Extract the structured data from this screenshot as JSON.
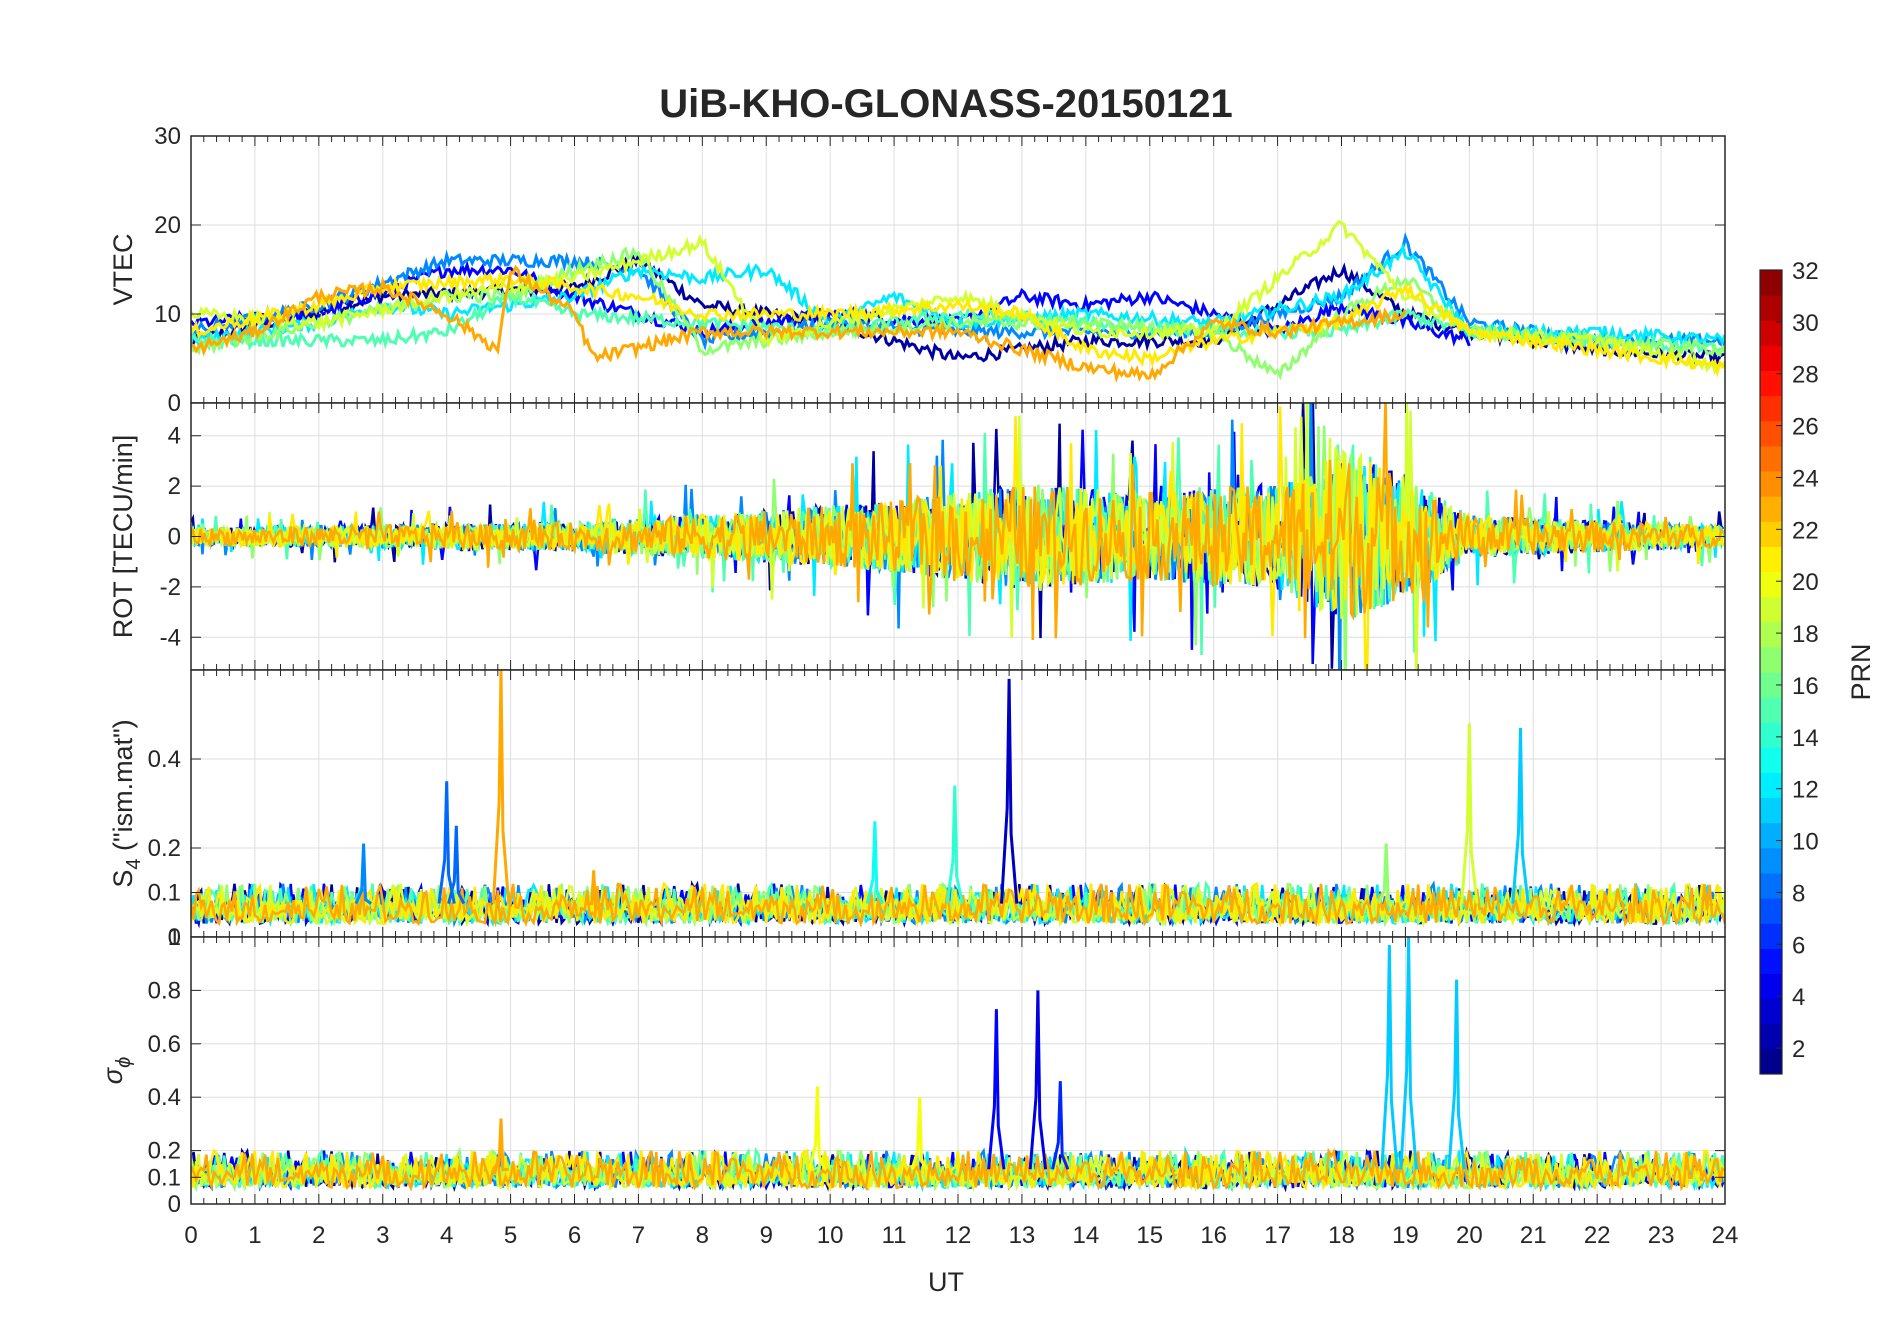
{
  "chart_data": {
    "type": "line",
    "title": "UiB-KHO-GLONASS-20150121",
    "xlabel": "UT",
    "xlim": [
      0,
      24
    ],
    "x_ticks": [
      "0",
      "1",
      "2",
      "3",
      "4",
      "5",
      "6",
      "7",
      "8",
      "9",
      "10",
      "11",
      "12",
      "13",
      "14",
      "15",
      "16",
      "17",
      "18",
      "19",
      "20",
      "21",
      "22",
      "23",
      "24"
    ],
    "grid": true,
    "colorbar": {
      "label": "PRN",
      "colormap": "jet",
      "range": [
        1,
        32
      ],
      "ticks": [
        "2",
        "4",
        "6",
        "8",
        "10",
        "12",
        "14",
        "16",
        "18",
        "20",
        "22",
        "24",
        "26",
        "28",
        "30",
        "32"
      ],
      "placement": "right"
    },
    "panels": [
      {
        "ylabel": "VTEC",
        "ylim": [
          0,
          30
        ],
        "y_ticks": [
          "0",
          "10",
          "20",
          "30"
        ],
        "series": [
          {
            "prn": 2,
            "points": [
              [
                0,
                7
              ],
              [
                3,
                12
              ],
              [
                6,
                13
              ],
              [
                7,
                16
              ],
              [
                8,
                11
              ],
              [
                10,
                9
              ],
              [
                12,
                5
              ],
              [
                14,
                7
              ],
              [
                16,
                7
              ],
              [
                18,
                15
              ],
              [
                19,
                10
              ],
              [
                20,
                8
              ],
              [
                22,
                6
              ],
              [
                24,
                5
              ]
            ]
          },
          {
            "prn": 5,
            "points": [
              [
                0,
                9
              ],
              [
                2,
                10
              ],
              [
                4,
                15
              ],
              [
                5,
                15
              ],
              [
                6,
                12
              ],
              [
                8,
                8
              ],
              [
                10,
                10
              ],
              [
                12,
                9
              ],
              [
                13,
                12
              ],
              [
                14,
                11
              ],
              [
                15,
                12
              ],
              [
                16,
                10
              ],
              [
                17,
                8
              ],
              [
                18,
                11
              ],
              [
                19,
                9
              ],
              [
                20,
                7
              ]
            ]
          },
          {
            "prn": 9,
            "points": [
              [
                0,
                8
              ],
              [
                2,
                11
              ],
              [
                4,
                16
              ],
              [
                6,
                16
              ],
              [
                7,
                15
              ],
              [
                8,
                7
              ],
              [
                10,
                9
              ],
              [
                12,
                8
              ],
              [
                14,
                8
              ],
              [
                16,
                8
              ],
              [
                18,
                12
              ],
              [
                19,
                18
              ],
              [
                20,
                9
              ],
              [
                22,
                7
              ],
              [
                24,
                7
              ]
            ]
          },
          {
            "prn": 12,
            "points": [
              [
                0,
                7
              ],
              [
                2,
                9
              ],
              [
                3,
                11
              ],
              [
                4,
                10
              ],
              [
                6,
                12
              ],
              [
                7,
                15
              ],
              [
                8,
                14
              ],
              [
                9,
                15
              ],
              [
                10,
                9
              ],
              [
                11,
                12
              ],
              [
                12,
                9
              ],
              [
                14,
                10
              ],
              [
                16,
                9
              ],
              [
                18,
                12
              ],
              [
                19,
                17
              ],
              [
                20,
                8
              ],
              [
                22,
                8
              ],
              [
                24,
                7
              ]
            ]
          },
          {
            "prn": 15,
            "points": [
              [
                0,
                7
              ],
              [
                1,
                7
              ],
              [
                3,
                7
              ],
              [
                4,
                8
              ],
              [
                5,
                12
              ],
              [
                6,
                10
              ],
              [
                8,
                9
              ],
              [
                10,
                8
              ],
              [
                12,
                10
              ],
              [
                14,
                9
              ],
              [
                16,
                8
              ],
              [
                18,
                8
              ],
              [
                19,
                10
              ],
              [
                20,
                8
              ],
              [
                22,
                7
              ],
              [
                24,
                6
              ]
            ]
          },
          {
            "prn": 17,
            "points": [
              [
                0,
                6
              ],
              [
                2,
                9
              ],
              [
                4,
                12
              ],
              [
                5,
                12
              ],
              [
                6,
                15
              ],
              [
                7,
                17
              ],
              [
                8,
                6
              ],
              [
                9,
                7
              ],
              [
                10,
                8
              ],
              [
                12,
                9
              ],
              [
                14,
                9
              ],
              [
                16,
                8
              ],
              [
                17,
                3
              ],
              [
                18,
                10
              ],
              [
                19,
                14
              ],
              [
                20,
                8
              ],
              [
                22,
                7
              ],
              [
                24,
                6
              ]
            ]
          },
          {
            "prn": 19,
            "points": [
              [
                0,
                10
              ],
              [
                2,
                9
              ],
              [
                4,
                12
              ],
              [
                6,
                14
              ],
              [
                8,
                18
              ],
              [
                9,
                7
              ],
              [
                10,
                9
              ],
              [
                12,
                12
              ],
              [
                14,
                8
              ],
              [
                16,
                8
              ],
              [
                18,
                20
              ],
              [
                19,
                12
              ],
              [
                20,
                8
              ],
              [
                22,
                7
              ],
              [
                24,
                4
              ]
            ]
          },
          {
            "prn": 21,
            "points": [
              [
                0,
                8
              ],
              [
                2,
                11
              ],
              [
                3,
                13
              ],
              [
                5,
                14
              ],
              [
                7,
                12
              ],
              [
                8,
                10
              ],
              [
                10,
                10
              ],
              [
                12,
                11
              ],
              [
                13,
                10
              ],
              [
                14,
                6
              ],
              [
                15,
                5
              ],
              [
                16,
                7
              ],
              [
                18,
                9
              ],
              [
                19,
                13
              ],
              [
                20,
                8
              ],
              [
                22,
                6
              ],
              [
                24,
                4
              ]
            ]
          },
          {
            "prn": 23,
            "points": [
              [
                0,
                6
              ],
              [
                1,
                8
              ],
              [
                2,
                12
              ],
              [
                3,
                13
              ],
              [
                4,
                10
              ],
              [
                4.8,
                6
              ],
              [
                5,
                15
              ],
              [
                6,
                10
              ],
              [
                6.3,
                5
              ],
              [
                8,
                8
              ],
              [
                10,
                8
              ],
              [
                12,
                8
              ],
              [
                14,
                4
              ],
              [
                15,
                3
              ],
              [
                16,
                9
              ],
              [
                17,
                8
              ],
              [
                18,
                9
              ],
              [
                19,
                10
              ]
            ]
          }
        ]
      },
      {
        "ylabel": "ROT [TECU/min]",
        "ylim": [
          -5.3,
          5.3
        ],
        "y_ticks": [
          "-4",
          "-2",
          "0",
          "2",
          "4"
        ],
        "envelope": [
          [
            0,
            0.5
          ],
          [
            6,
            0.8
          ],
          [
            9,
            1.5
          ],
          [
            11,
            2
          ],
          [
            13,
            3
          ],
          [
            15,
            2.5
          ],
          [
            17,
            3
          ],
          [
            18,
            5
          ],
          [
            19,
            3.5
          ],
          [
            20,
            1.2
          ],
          [
            24,
            0.6
          ]
        ],
        "series_prns": [
          2,
          5,
          9,
          12,
          15,
          17,
          19,
          21,
          23
        ]
      },
      {
        "ylabel_base": "S",
        "ylabel_sub": "4",
        "ylabel_rest": " (\"ism.mat\")",
        "ylim": [
          0,
          0.6
        ],
        "y_ticks": [
          "0",
          "0.1",
          "0.2",
          "0.4"
        ],
        "baseline": [
          0.03,
          0.12
        ],
        "spikes": [
          {
            "prn": 9,
            "x": 2.7,
            "y": 0.21
          },
          {
            "prn": 8,
            "x": 4.0,
            "y": 0.35
          },
          {
            "prn": 8,
            "x": 4.15,
            "y": 0.25
          },
          {
            "prn": 23,
            "x": 4.85,
            "y": 0.6
          },
          {
            "prn": 23,
            "x": 6.3,
            "y": 0.15
          },
          {
            "prn": 13,
            "x": 10.7,
            "y": 0.26
          },
          {
            "prn": 14,
            "x": 11.95,
            "y": 0.34
          },
          {
            "prn": 3,
            "x": 12.8,
            "y": 0.58
          },
          {
            "prn": 17,
            "x": 18.7,
            "y": 0.21
          },
          {
            "prn": 19,
            "x": 20.0,
            "y": 0.48
          },
          {
            "prn": 11,
            "x": 20.8,
            "y": 0.47
          }
        ]
      },
      {
        "ylabel_base": "σ",
        "ylabel_sub": "ϕ",
        "ylim": [
          0,
          1
        ],
        "y_ticks": [
          "0",
          "0.1",
          "0.2",
          "0.4",
          "0.6",
          "0.8",
          "1"
        ],
        "baseline": [
          0.06,
          0.2
        ],
        "spikes": [
          {
            "prn": 23,
            "x": 4.85,
            "y": 0.32
          },
          {
            "prn": 20,
            "x": 9.8,
            "y": 0.44
          },
          {
            "prn": 20,
            "x": 11.4,
            "y": 0.4
          },
          {
            "prn": 5,
            "x": 12.6,
            "y": 0.73
          },
          {
            "prn": 4,
            "x": 13.25,
            "y": 0.8
          },
          {
            "prn": 6,
            "x": 13.6,
            "y": 0.46
          },
          {
            "prn": 11,
            "x": 18.75,
            "y": 0.97
          },
          {
            "prn": 11,
            "x": 19.05,
            "y": 1.0
          },
          {
            "prn": 11,
            "x": 19.8,
            "y": 0.84
          }
        ]
      }
    ]
  }
}
